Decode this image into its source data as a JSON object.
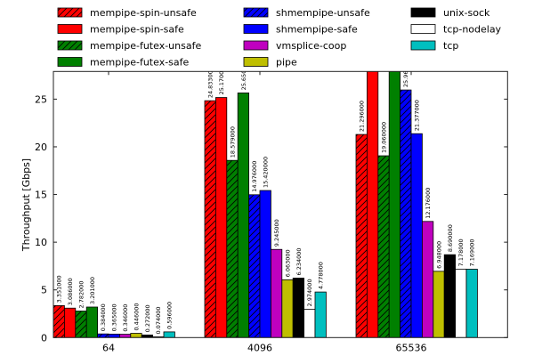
{
  "chart_data": {
    "type": "bar",
    "title": "",
    "xlabel": "",
    "ylabel": "Throughput [Gbps]",
    "ylim": [
      0,
      27.9
    ],
    "yticks": [
      0,
      5,
      10,
      15,
      20,
      25
    ],
    "grid": false,
    "legend_position": "top (above plot, 3 columns)",
    "categories": [
      "64",
      "4096",
      "65536"
    ],
    "series": [
      {
        "name": "mempipe-spin-unsafe",
        "color": "#ff0000",
        "hatch": true,
        "values": [
          3.351,
          24.833,
          21.296
        ],
        "labels": [
          "3.351000",
          "24.833000",
          "21.296000"
        ]
      },
      {
        "name": "mempipe-spin-safe",
        "color": "#ff0000",
        "hatch": false,
        "values": [
          3.086,
          25.17,
          null
        ],
        "labels": [
          "3.086000",
          "25.170000",
          null
        ],
        "note": "65536 bar exceeds the y-axis limit; value label not visible"
      },
      {
        "name": "mempipe-futex-unsafe",
        "color": "#008000",
        "hatch": true,
        "values": [
          2.782,
          18.579,
          19.06
        ],
        "labels": [
          "2.782000",
          "18.579000",
          "19.060000"
        ]
      },
      {
        "name": "mempipe-futex-safe",
        "color": "#008000",
        "hatch": false,
        "values": [
          3.201,
          25.65,
          null
        ],
        "labels": [
          "3.201000",
          "25.650000",
          null
        ],
        "note": "65536 bar exceeds the y-axis limit; value label not visible"
      },
      {
        "name": "shmempipe-unsafe",
        "color": "#0000ff",
        "hatch": true,
        "values": [
          0.384,
          14.976,
          25.96
        ],
        "labels": [
          "0.384000",
          "14.976000",
          "25.960000"
        ]
      },
      {
        "name": "shmempipe-safe",
        "color": "#0000ff",
        "hatch": false,
        "values": [
          0.365,
          15.42,
          21.377
        ],
        "labels": [
          "0.365000",
          "15.420000",
          "21.377000"
        ]
      },
      {
        "name": "vmsplice-coop",
        "color": "#bf00bf",
        "hatch": false,
        "values": [
          0.346,
          9.245,
          12.176
        ],
        "labels": [
          "0.346000",
          "9.245000",
          "12.176000"
        ]
      },
      {
        "name": "pipe",
        "color": "#bfbf00",
        "hatch": false,
        "values": [
          0.446,
          6.063,
          6.948
        ],
        "labels": [
          "0.446000",
          "6.063000",
          "6.948000"
        ]
      },
      {
        "name": "unix-sock",
        "color": "#000000",
        "hatch": false,
        "values": [
          0.272,
          6.234,
          8.69
        ],
        "labels": [
          "0.272000",
          "6.234000",
          "8.690000"
        ]
      },
      {
        "name": "tcp-nodelay",
        "color": "#ffffff",
        "hatch": false,
        "values": [
          0.074,
          2.974,
          7.178
        ],
        "labels": [
          "0.074000",
          "2.974000",
          "7.178000"
        ]
      },
      {
        "name": "tcp",
        "color": "#00bfbf",
        "hatch": false,
        "values": [
          0.596,
          4.778,
          7.169
        ],
        "labels": [
          "0.596000",
          "4.778000",
          "7.169000"
        ]
      }
    ]
  }
}
